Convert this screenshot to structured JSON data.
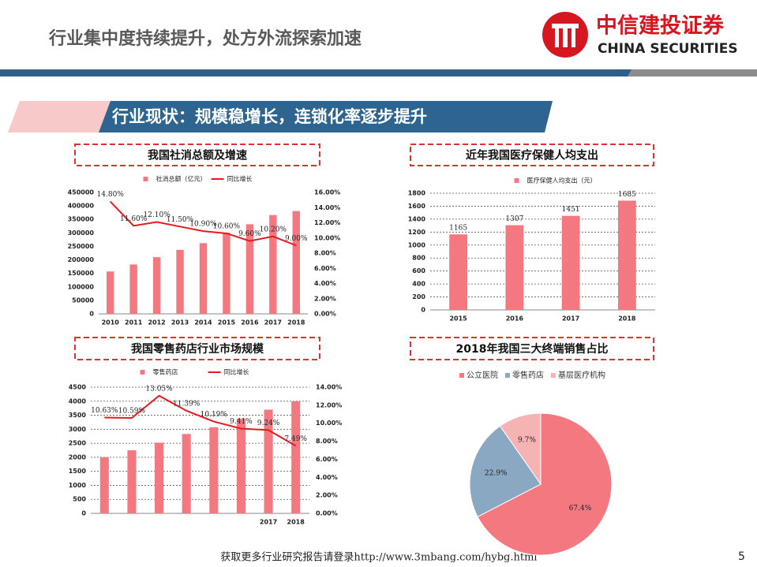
{
  "header": {
    "title": "行业集中度持续提升，处方外流探索加速",
    "logo_cn": "中信建投证券",
    "logo_en": "CHINA SECURITIES"
  },
  "banner": "行业现状：规模稳增长，连锁化率逐步提升",
  "footer": {
    "text": "获取更多行业研究报告请登录http://www.3mbang.com/hybg.html",
    "page": "5"
  },
  "chart_data": [
    {
      "type": "bar",
      "title": "我国社消总额及增速",
      "categories": [
        "2010",
        "2011",
        "2012",
        "2013",
        "2014",
        "2015",
        "2016",
        "2017",
        "2018"
      ],
      "series": [
        {
          "name": "社消总额（亿元）",
          "color": "#f4787f",
          "values": [
            157000,
            183000,
            210000,
            237000,
            262000,
            301000,
            332000,
            366000,
            381000
          ]
        },
        {
          "name": "同比增长",
          "color": "#e8191e",
          "type": "line",
          "axis": "y2",
          "values": [
            14.8,
            11.6,
            12.1,
            11.5,
            10.9,
            10.6,
            9.6,
            10.2,
            9.0
          ],
          "value_labels": [
            "14.80%",
            "11.60%",
            "12.10%",
            "11.50%",
            "10.90%",
            "10.60%",
            "9.60%",
            "10.20%",
            "9.00%"
          ]
        }
      ],
      "ylim": [
        0,
        450000
      ],
      "yticks": [
        0,
        50000,
        100000,
        150000,
        200000,
        250000,
        300000,
        350000,
        400000,
        450000
      ],
      "y2lim": [
        0,
        16
      ],
      "y2ticks": [
        {
          "value": 0,
          "label": "0.00%"
        },
        {
          "value": 2,
          "label": "2.00%"
        },
        {
          "value": 4,
          "label": "4.00%"
        },
        {
          "value": 6,
          "label": "6.00%"
        },
        {
          "value": 8,
          "label": "8.00%"
        },
        {
          "value": 10,
          "label": "10.00%"
        },
        {
          "value": 12,
          "label": "12.00%"
        },
        {
          "value": 14,
          "label": "14.00%"
        },
        {
          "value": 16,
          "label": "16.00%"
        }
      ],
      "grid": false,
      "bar_labels": false
    },
    {
      "type": "bar",
      "title": "近年我国医疗保健人均支出",
      "categories": [
        "2015",
        "2016",
        "2017",
        "2018"
      ],
      "series": [
        {
          "name": "医疗保健人均支出（元）",
          "color": "#f4787f",
          "values": [
            1165,
            1307,
            1451,
            1685
          ]
        }
      ],
      "ylim": [
        0,
        1800
      ],
      "yticks": [
        0,
        200,
        400,
        600,
        800,
        1000,
        1200,
        1400,
        1600,
        1800
      ],
      "grid": true,
      "bar_labels": true
    },
    {
      "type": "bar",
      "title": "我国零售药店行业市场规模",
      "categories": [
        null,
        null,
        null,
        null,
        null,
        null,
        "2017",
        "2018"
      ],
      "series": [
        {
          "name": "零售药店",
          "color": "#f4787f",
          "values": [
            2000,
            2250,
            2520,
            2830,
            3070,
            3380,
            3700,
            4000
          ]
        },
        {
          "name": "同比增长",
          "color": "#e8191e",
          "type": "line",
          "axis": "y2",
          "values": [
            10.63,
            10.59,
            13.05,
            11.39,
            10.19,
            9.41,
            9.24,
            7.49
          ],
          "value_labels": [
            "10.63%",
            "10.59%",
            "13.05%",
            "11.39%",
            "10.19%",
            "9.41%",
            "9.24%",
            "7.49%"
          ]
        }
      ],
      "ylim": [
        0,
        4500
      ],
      "yticks": [
        0,
        500,
        1000,
        1500,
        2000,
        2500,
        3000,
        3500,
        4000,
        4500
      ],
      "y2lim": [
        0,
        14
      ],
      "y2ticks": [
        {
          "value": 0,
          "label": "0.00%"
        },
        {
          "value": 2,
          "label": "2.00%"
        },
        {
          "value": 4,
          "label": "4.00%"
        },
        {
          "value": 6,
          "label": "6.00%"
        },
        {
          "value": 8,
          "label": "8.00%"
        },
        {
          "value": 10,
          "label": "10.00%"
        },
        {
          "value": 12,
          "label": "12.00%"
        },
        {
          "value": 14,
          "label": "14.00%"
        }
      ],
      "grid": true,
      "bar_labels": false
    },
    {
      "type": "pie",
      "title": "2018年我国三大终端销售占比",
      "categories": [
        "公立医院",
        "零售药店",
        "基层医疗机构"
      ],
      "values": [
        67.4,
        22.9,
        9.7
      ],
      "value_labels": [
        "67.4%",
        "22.9%",
        "9.7%"
      ],
      "colors": [
        "#f4787f",
        "#8aa8c2",
        "#f5b3b3"
      ]
    }
  ]
}
